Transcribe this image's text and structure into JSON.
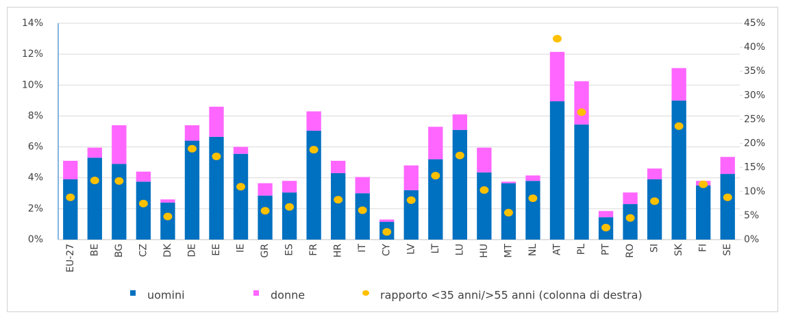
{
  "chart_data": {
    "type": "bar",
    "stacked": true,
    "categories": [
      "EU-27",
      "BE",
      "BG",
      "CZ",
      "DK",
      "DE",
      "EE",
      "IE",
      "GR",
      "ES",
      "FR",
      "HR",
      "IT",
      "CY",
      "LV",
      "LT",
      "LU",
      "HU",
      "MT",
      "NL",
      "AT",
      "PL",
      "PT",
      "RO",
      "SI",
      "SK",
      "FI",
      "SE"
    ],
    "series": [
      {
        "name": "uomini",
        "color": "#0070c0",
        "axis": "y",
        "type": "bar",
        "values": [
          3.9,
          5.3,
          4.9,
          3.75,
          2.4,
          6.4,
          6.65,
          5.55,
          2.85,
          3.05,
          7.05,
          4.3,
          3.0,
          1.15,
          3.2,
          5.2,
          7.1,
          4.35,
          3.65,
          3.8,
          8.95,
          7.45,
          1.45,
          2.3,
          3.9,
          9.0,
          3.5,
          4.25
        ]
      },
      {
        "name": "donne",
        "color": "#ff66ff",
        "axis": "y",
        "type": "bar",
        "values": [
          1.2,
          0.65,
          2.5,
          0.65,
          0.2,
          1.0,
          1.95,
          0.45,
          0.8,
          0.75,
          1.25,
          0.8,
          1.05,
          0.15,
          1.6,
          2.1,
          1.0,
          1.6,
          0.1,
          0.35,
          3.2,
          2.8,
          0.4,
          0.75,
          0.7,
          2.1,
          0.3,
          1.1
        ]
      },
      {
        "name": "rapporto <35 anni/>55 anni (colonna di destra)",
        "color": "#ffc000",
        "axis": "y2",
        "type": "scatter",
        "values": [
          8.8,
          12.3,
          12.2,
          7.5,
          4.8,
          18.9,
          17.3,
          11.0,
          6.0,
          6.8,
          18.7,
          8.3,
          6.1,
          1.6,
          8.2,
          13.3,
          17.5,
          10.3,
          5.6,
          8.6,
          41.8,
          26.5,
          2.5,
          4.5,
          8.0,
          23.6,
          11.5,
          8.8
        ]
      }
    ],
    "ylim": [
      0,
      14
    ],
    "yticks": [
      {
        "value": 0,
        "label": "0%"
      },
      {
        "value": 2,
        "label": "2%"
      },
      {
        "value": 4,
        "label": "4%"
      },
      {
        "value": 6,
        "label": "6%"
      },
      {
        "value": 8,
        "label": "8%"
      },
      {
        "value": 10,
        "label": "10%"
      },
      {
        "value": 12,
        "label": "12%"
      },
      {
        "value": 14,
        "label": "14%"
      }
    ],
    "y2lim": [
      0,
      45
    ],
    "y2ticks": [
      {
        "value": 0,
        "label": "0%"
      },
      {
        "value": 5,
        "label": "5%"
      },
      {
        "value": 10,
        "label": "10%"
      },
      {
        "value": 15,
        "label": "15%"
      },
      {
        "value": 20,
        "label": "20%"
      },
      {
        "value": 25,
        "label": "25%"
      },
      {
        "value": 30,
        "label": "30%"
      },
      {
        "value": 35,
        "label": "35%"
      },
      {
        "value": 40,
        "label": "40%"
      },
      {
        "value": 45,
        "label": "45%"
      }
    ],
    "grid": true,
    "legend": "bottom"
  }
}
